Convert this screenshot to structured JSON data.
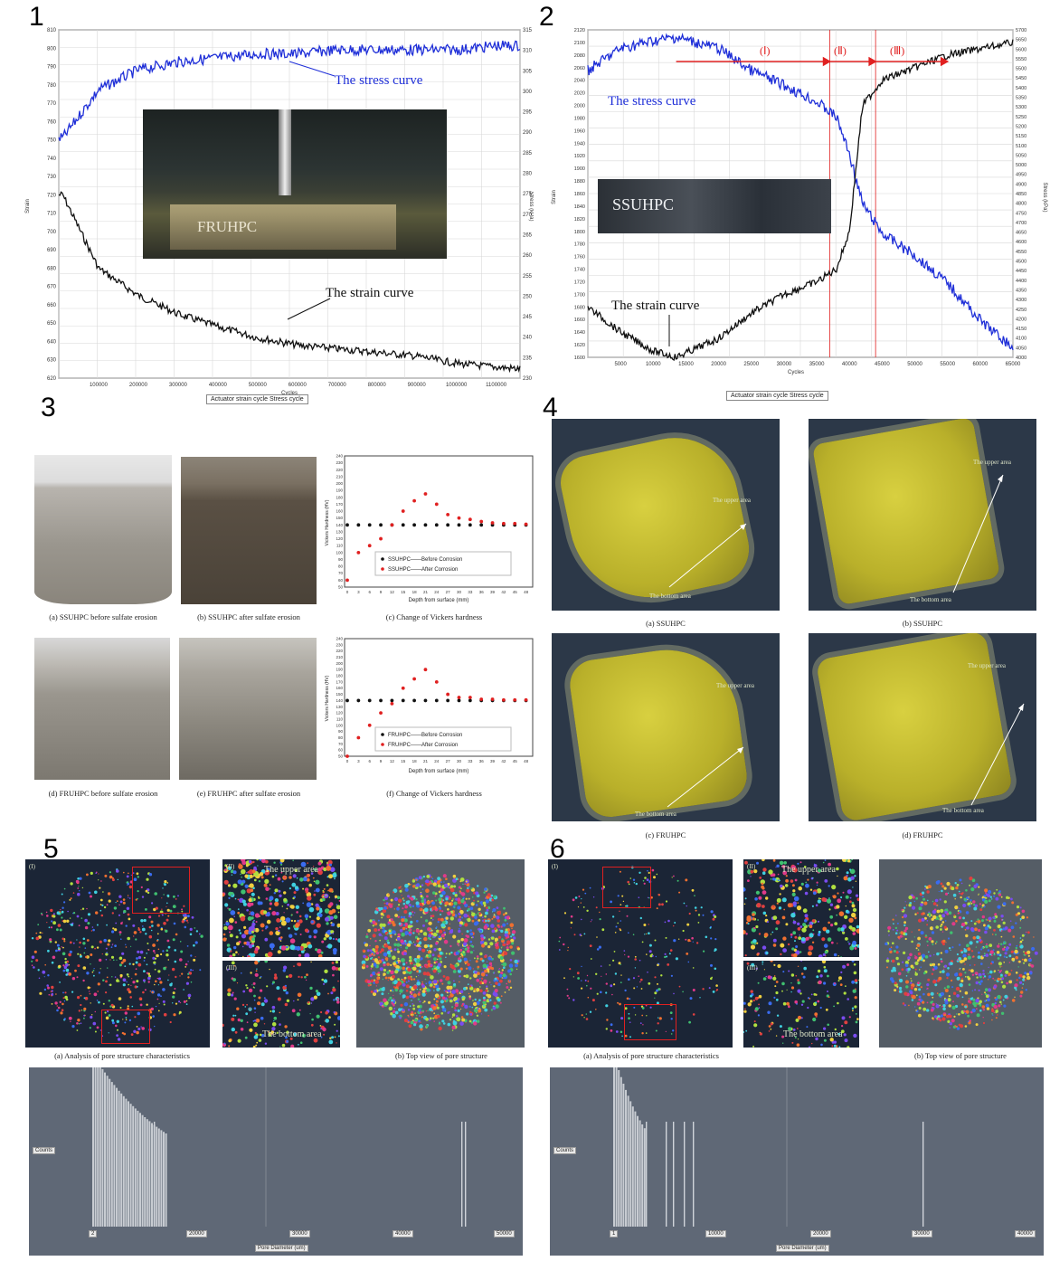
{
  "panels": {
    "p1": {
      "num": "1",
      "stress_curve_label": "The stress curve",
      "strain_curve_label": "The strain curve",
      "specimen_label": "FRUHPC",
      "xlabel": "Cycles",
      "ylabel_left": "Strain",
      "ylabel_right": "Stress (kPa)",
      "legend": "Actuator strain cycle   Stress cycle",
      "y_left_ticks": [
        "810",
        "800",
        "790",
        "780",
        "770",
        "760",
        "750",
        "740",
        "730",
        "720",
        "710",
        "700",
        "690",
        "680",
        "670",
        "660",
        "650",
        "640",
        "630",
        "620"
      ],
      "y_right_ticks": [
        "315",
        "310",
        "305",
        "300",
        "295",
        "290",
        "285",
        "280",
        "275",
        "270",
        "265",
        "260",
        "255",
        "250",
        "245",
        "240",
        "235",
        "230"
      ],
      "x_ticks": [
        "100000",
        "200000",
        "300000",
        "400000",
        "500000",
        "600000",
        "700000",
        "800000",
        "900000",
        "1000000",
        "1100000"
      ]
    },
    "p2": {
      "num": "2",
      "stress_curve_label": "The stress curve",
      "strain_curve_label": "The strain curve",
      "specimen_label": "SSUHPC",
      "stage1": "(Ⅰ)",
      "stage2": "(Ⅱ)",
      "stage3": "(Ⅲ)",
      "xlabel": "Cycles",
      "ylabel_left": "Strain",
      "ylabel_right": "Stress (kPa)",
      "legend": "Actuator strain cycle   Stress cycle",
      "y_left_ticks": [
        "2120",
        "2100",
        "2080",
        "2060",
        "2040",
        "2020",
        "2000",
        "1980",
        "1960",
        "1940",
        "1920",
        "1900",
        "1880",
        "1860",
        "1840",
        "1820",
        "1800",
        "1780",
        "1760",
        "1740",
        "1720",
        "1700",
        "1680",
        "1660",
        "1640",
        "1620",
        "1600"
      ],
      "y_right_ticks": [
        "5700",
        "5650",
        "5600",
        "5550",
        "5500",
        "5450",
        "5400",
        "5350",
        "5300",
        "5250",
        "5200",
        "5150",
        "5100",
        "5050",
        "5000",
        "4950",
        "4900",
        "4850",
        "4800",
        "4750",
        "4700",
        "4650",
        "4600",
        "4550",
        "4500",
        "4450",
        "4400",
        "4350",
        "4300",
        "4250",
        "4200",
        "4150",
        "4100",
        "4050",
        "4000"
      ],
      "x_ticks": [
        "5000",
        "10000",
        "15000",
        "20000",
        "25000",
        "30000",
        "35000",
        "40000",
        "45000",
        "50000",
        "55000",
        "60000",
        "65000"
      ]
    },
    "p3": {
      "num": "3",
      "caps": [
        "(a) SSUHPC before sulfate erosion",
        "(b) SSUHPC after sulfate erosion",
        "(c) Change of Vickers hardness",
        "(d) FRUHPC before sulfate erosion",
        "(e) FRUHPC after sulfate erosion",
        "(f) Change of Vickers hardness"
      ],
      "chart_top": {
        "ylabel": "Vickers Hardness (HV)",
        "xlabel": "Depth from surface (mm)",
        "legend1": "SSUHPC——Before Corrosion",
        "legend2": "SSUHPC——After Corrosion"
      },
      "chart_bottom": {
        "ylabel": "Vickers Hardness (HV)",
        "xlabel": "Depth from surface (mm)",
        "legend1": "FRUHPC——Before Corrosion",
        "legend2": "FRUHPC——After Corrosion"
      },
      "y_ticks": [
        "240",
        "230",
        "220",
        "210",
        "200",
        "190",
        "180",
        "170",
        "160",
        "150",
        "140",
        "130",
        "120",
        "110",
        "100",
        "90",
        "80",
        "70",
        "60",
        "50"
      ],
      "x_ticks": [
        "0",
        "3",
        "6",
        "9",
        "12",
        "15",
        "18",
        "21",
        "24",
        "27",
        "30",
        "33",
        "36",
        "39",
        "42",
        "45",
        "48"
      ]
    },
    "p4": {
      "num": "4",
      "upper": "The upper area",
      "bottom": "The bottom area",
      "caps": [
        "(a) SSUHPC",
        "(b) SSUHPC",
        "(c) FRUHPC",
        "(d) FRUHPC"
      ]
    },
    "p5": {
      "num": "5",
      "label_i": "(I)",
      "label_ii": "(II)",
      "label_iii": "(III)",
      "upper": "The upper area",
      "bottom": "The bottom area",
      "cap_a": "(a)  Analysis of pore structure characteristics",
      "cap_b": "(b) Top view of pore structure",
      "hist": {
        "count": "Counts",
        "xlabel": "Pore Diameter (um)",
        "ticks": [
          "2",
          "20000",
          "30000",
          "40000",
          "50000"
        ]
      }
    },
    "p6": {
      "num": "6",
      "label_i": "(I)",
      "label_ii": "(II)",
      "label_iii": "(III)",
      "upper": "The upper area",
      "bottom": "The bottom area",
      "cap_a": "(a)  Analysis of pore structure characteristics",
      "cap_b": "(b) Top view of pore structure",
      "hist": {
        "count": "Counts",
        "xlabel": "Pore Diameter (um)",
        "ticks": [
          "1",
          "10000",
          "20000",
          "30000",
          "40000"
        ]
      }
    }
  },
  "chart_data": [
    {
      "type": "line",
      "x": [
        10000,
        100000,
        200000,
        300000,
        400000,
        500000,
        600000,
        700000,
        800000,
        900000,
        1000000,
        1100000,
        1160000
      ],
      "series": [
        {
          "name": "Actuator strain cycle",
          "values": [
            720,
            680,
            665,
            655,
            648,
            642,
            638,
            636,
            634,
            632,
            628,
            626,
            625
          ]
        },
        {
          "name": "Stress cycle",
          "values": [
            290,
            302,
            307,
            309,
            310,
            311,
            311,
            312,
            312,
            312,
            312,
            313,
            313
          ]
        }
      ],
      "xlabel": "Cycles",
      "ylabel": "Strain",
      "ylim": [
        620,
        810
      ],
      "xlim": [
        0,
        1160000
      ],
      "grid": true
    },
    {
      "type": "line",
      "x": [
        0,
        5000,
        10000,
        13500,
        20000,
        25000,
        30000,
        35000,
        38000,
        40000,
        42000,
        45000,
        50000,
        55000,
        60000,
        65000
      ],
      "series": [
        {
          "name": "Actuator strain cycle",
          "values": [
            1680,
            1640,
            1610,
            1600,
            1630,
            1670,
            1700,
            1720,
            1740,
            1800,
            2000,
            2040,
            2060,
            2080,
            2090,
            2100
          ]
        },
        {
          "name": "Stress cycle",
          "values": [
            5500,
            5620,
            5660,
            5680,
            5620,
            5500,
            5420,
            5330,
            5250,
            5050,
            4780,
            4620,
            4500,
            4350,
            4150,
            4000
          ]
        }
      ],
      "xlabel": "Cycles",
      "ylabel": "Strain",
      "ylim": [
        1600,
        2120
      ],
      "xlim": [
        0,
        65000
      ],
      "grid": true
    },
    {
      "type": "scatter",
      "x": [
        0,
        3,
        6,
        9,
        12,
        15,
        18,
        21,
        24,
        27,
        30,
        33,
        36,
        39,
        42,
        45,
        48
      ],
      "series": [
        {
          "name": "SSUHPC——Before Corrosion",
          "values": [
            140,
            140,
            140,
            140,
            140,
            140,
            140,
            140,
            140,
            140,
            140,
            140,
            140,
            140,
            140,
            140,
            140
          ]
        },
        {
          "name": "SSUHPC——After Corrosion",
          "values": [
            60,
            100,
            110,
            120,
            140,
            160,
            175,
            185,
            170,
            155,
            150,
            148,
            145,
            143,
            142,
            142,
            141
          ]
        }
      ],
      "xlabel": "Depth from surface (mm)",
      "ylabel": "Vickers Hardness (HV)",
      "ylim": [
        50,
        240
      ]
    },
    {
      "type": "scatter",
      "x": [
        0,
        3,
        6,
        9,
        12,
        15,
        18,
        21,
        24,
        27,
        30,
        33,
        36,
        39,
        42,
        45,
        48
      ],
      "series": [
        {
          "name": "FRUHPC——Before Corrosion",
          "values": [
            140,
            140,
            140,
            140,
            140,
            140,
            140,
            140,
            140,
            140,
            140,
            140,
            140,
            140,
            140,
            140,
            140
          ]
        },
        {
          "name": "FRUHPC——After Corrosion",
          "values": [
            50,
            80,
            100,
            120,
            135,
            160,
            175,
            190,
            170,
            150,
            145,
            145,
            142,
            142,
            141,
            141,
            141
          ]
        }
      ],
      "xlabel": "Depth from surface (mm)",
      "ylabel": "Vickers Hardness (HV)",
      "ylim": [
        50,
        240
      ]
    }
  ],
  "colors": {
    "stress": "#1f2fd8",
    "strain": "#111111",
    "stage": "#e02020",
    "ct_bg": "#2c3848",
    "cyl": "#c8bf30",
    "hist_bg": "#5f6876"
  }
}
